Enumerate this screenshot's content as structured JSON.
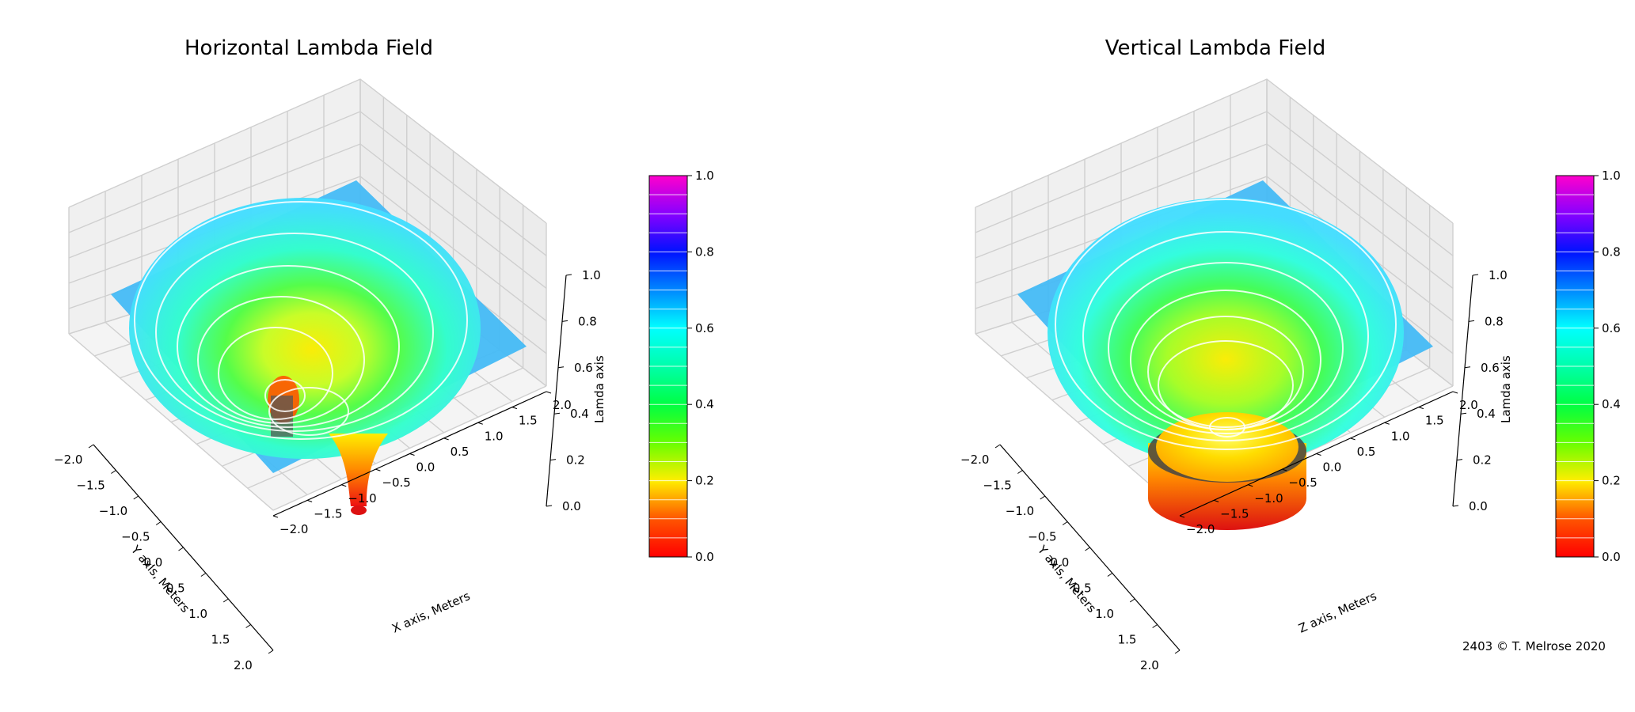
{
  "credit": "2403  © T. Melrose 2020",
  "chart_data": [
    {
      "type": "surface3d",
      "title": "Horizontal Lambda Field",
      "xlabel": "X axis, Meters",
      "ylabel": "Y axis, Meters",
      "zlabel": "Lamda axis",
      "xlim": [
        -2.0,
        2.0
      ],
      "ylim": [
        -2.0,
        2.0
      ],
      "zlim": [
        0.0,
        1.0
      ],
      "xticks": [
        "−2.0",
        "−1.5",
        "−1.0",
        "−0.5",
        "0.0",
        "0.5",
        "1.0",
        "1.5",
        "2.0"
      ],
      "yticks": [
        "−2.0",
        "−1.5",
        "−1.0",
        "−0.5",
        "0.0",
        "0.5",
        "1.0",
        "1.5",
        "2.0"
      ],
      "zticks": [
        "0.0",
        "0.2",
        "0.4",
        "0.6",
        "0.8",
        "1.0"
      ],
      "colorbar": {
        "min": 0.0,
        "max": 1.0,
        "ticks": [
          "0.0",
          "0.2",
          "0.4",
          "0.6",
          "0.8",
          "1.0"
        ],
        "colormap": "gist_rainbow"
      },
      "surface": {
        "outer_value": 0.6,
        "wells": [
          {
            "x": 0.5,
            "y": 0.0,
            "min": 0.0
          },
          {
            "x": -0.9,
            "y": 0.0,
            "min": 0.25
          }
        ]
      }
    },
    {
      "type": "surface3d",
      "title": "Vertical Lambda Field",
      "xlabel": "Z axis, Meters",
      "ylabel": "Y axis, Meters",
      "zlabel": "Lamda axis",
      "xlim": [
        -2.0,
        2.0
      ],
      "ylim": [
        -2.0,
        2.0
      ],
      "zlim": [
        0.0,
        1.0
      ],
      "xticks": [
        "−2.0",
        "−1.5",
        "−1.0",
        "−0.5",
        "0.0",
        "0.5",
        "1.0",
        "1.5",
        "2.0"
      ],
      "yticks": [
        "−2.0",
        "−1.5",
        "−1.0",
        "−0.5",
        "0.0",
        "0.5",
        "1.0",
        "1.5",
        "2.0"
      ],
      "zticks": [
        "0.0",
        "0.2",
        "0.4",
        "0.6",
        "0.8",
        "1.0"
      ],
      "colorbar": {
        "min": 0.0,
        "max": 1.0,
        "ticks": [
          "0.0",
          "0.2",
          "0.4",
          "0.6",
          "0.8",
          "1.0"
        ],
        "colormap": "gist_rainbow"
      },
      "surface": {
        "outer_value": 0.6,
        "wells": [
          {
            "x": 0.0,
            "y": 0.0,
            "min": 0.0
          }
        ]
      }
    }
  ]
}
